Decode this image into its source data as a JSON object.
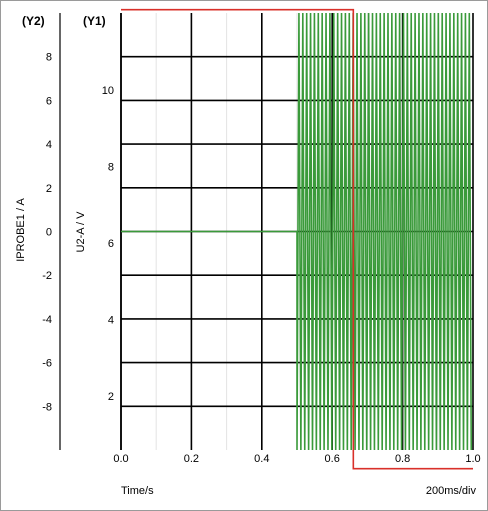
{
  "chart_data": {
    "type": "line",
    "xlabel": "Time/s",
    "x_scale_note": "200ms/div",
    "xlim": [
      0,
      1
    ],
    "x_ticks": [
      0.0,
      0.2,
      0.4,
      0.6,
      0.8,
      1.0
    ],
    "x_tick_labels": [
      "0.0",
      "0.2",
      "0.4",
      "0.6",
      "0.8",
      "1.0"
    ],
    "y1": {
      "title": "(Y1)",
      "label": "U2-A / V",
      "ticks": [
        2,
        4,
        6,
        8,
        10
      ],
      "tick_labels": [
        "2",
        "4",
        "6",
        "8",
        "10"
      ]
    },
    "y2": {
      "title": "(Y2)",
      "label": "IPROBE1 / A",
      "lim": [
        -10,
        10
      ],
      "ticks": [
        8,
        6,
        4,
        2,
        0,
        -2,
        -4,
        -6,
        -8
      ],
      "tick_labels": [
        "8",
        "6",
        "4",
        "2",
        "0",
        "-2",
        "-4",
        "-6",
        "-8"
      ]
    },
    "grid": true,
    "series": [
      {
        "color": "#d9302a",
        "axis": "y1",
        "shape": "step",
        "points": [
          [
            0.0,
            12.1
          ],
          [
            0.66,
            12.1
          ],
          [
            0.66,
            0.1
          ],
          [
            1.0,
            0.1
          ]
        ]
      },
      {
        "color": "#3a9a3a",
        "axis": "y2",
        "shape": "oscillation",
        "flat_value": 0,
        "flat_until": 0.5,
        "osc_start": 0.5,
        "osc_end": 1.0,
        "osc_period": 0.011,
        "osc_min": -10,
        "osc_max": 10
      }
    ]
  }
}
